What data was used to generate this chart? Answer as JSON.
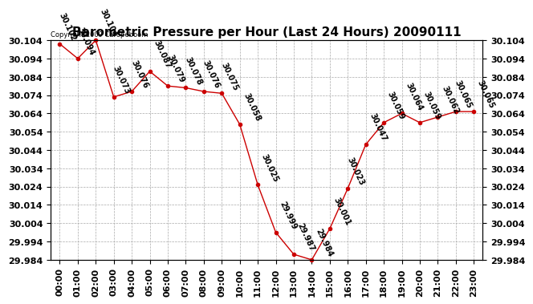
{
  "title": "Barometric Pressure per Hour (Last 24 Hours) 20090111",
  "copyright": "Copyright 2009 Caropeboom",
  "hours": [
    "00:00",
    "01:00",
    "02:00",
    "03:00",
    "04:00",
    "05:00",
    "06:00",
    "07:00",
    "08:00",
    "09:00",
    "10:00",
    "11:00",
    "12:00",
    "13:00",
    "14:00",
    "15:00",
    "16:00",
    "17:00",
    "18:00",
    "19:00",
    "20:00",
    "21:00",
    "22:00",
    "23:00"
  ],
  "values": [
    30.102,
    30.094,
    30.104,
    30.073,
    30.076,
    30.087,
    30.079,
    30.078,
    30.076,
    30.075,
    30.058,
    30.025,
    29.999,
    29.987,
    29.984,
    30.001,
    30.023,
    30.047,
    30.059,
    30.064,
    30.059,
    30.062,
    30.065,
    30.065
  ],
  "labels": [
    "30.102",
    "30.094",
    "30.104",
    "30.073",
    "30.076",
    "30.087",
    "30.079",
    "30.078",
    "30.076",
    "30.075",
    "30.058",
    "30.025",
    "29.999",
    "29.987",
    "29.984",
    "30.001",
    "30.023",
    "30.047",
    "30.059",
    "30.064",
    "30.059",
    "30.062",
    "30.065",
    "30.065"
  ],
  "ylim_min": 29.984,
  "ylim_max": 30.104,
  "yticks": [
    29.984,
    29.994,
    30.004,
    30.014,
    30.024,
    30.034,
    30.044,
    30.054,
    30.064,
    30.074,
    30.084,
    30.094,
    30.104
  ],
  "line_color": "#cc0000",
  "bg_color": "#ffffff",
  "grid_color": "#aaaaaa",
  "title_fontsize": 11,
  "tick_fontsize": 8,
  "annot_fontsize": 7
}
